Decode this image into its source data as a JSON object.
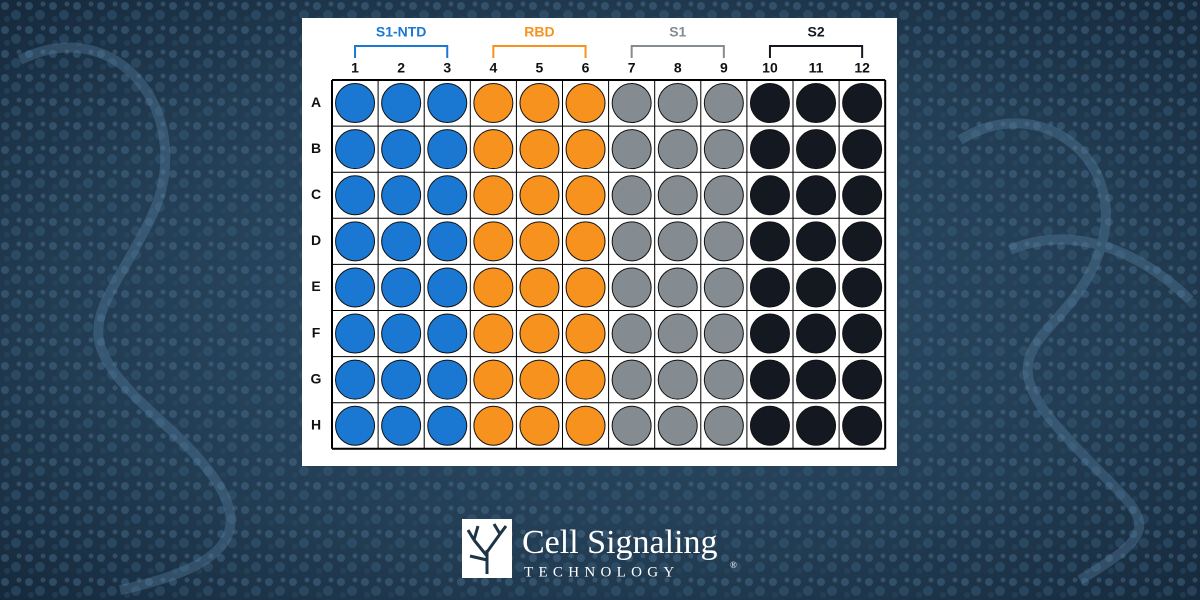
{
  "plate": {
    "groups": [
      {
        "label": "S1-NTD",
        "color": "#1a78d2",
        "columns": [
          "1",
          "2",
          "3"
        ]
      },
      {
        "label": "RBD",
        "color": "#f7921e",
        "columns": [
          "4",
          "5",
          "6"
        ]
      },
      {
        "label": "S1",
        "color": "#858c91",
        "columns": [
          "7",
          "8",
          "9"
        ]
      },
      {
        "label": "S2",
        "color": "#141820",
        "columns": [
          "10",
          "11",
          "12"
        ]
      }
    ],
    "rows": [
      "A",
      "B",
      "C",
      "D",
      "E",
      "F",
      "G",
      "H"
    ]
  },
  "logo": {
    "name": "Cell Signaling",
    "tagline": "TECHNOLOGY",
    "mark": "®"
  }
}
